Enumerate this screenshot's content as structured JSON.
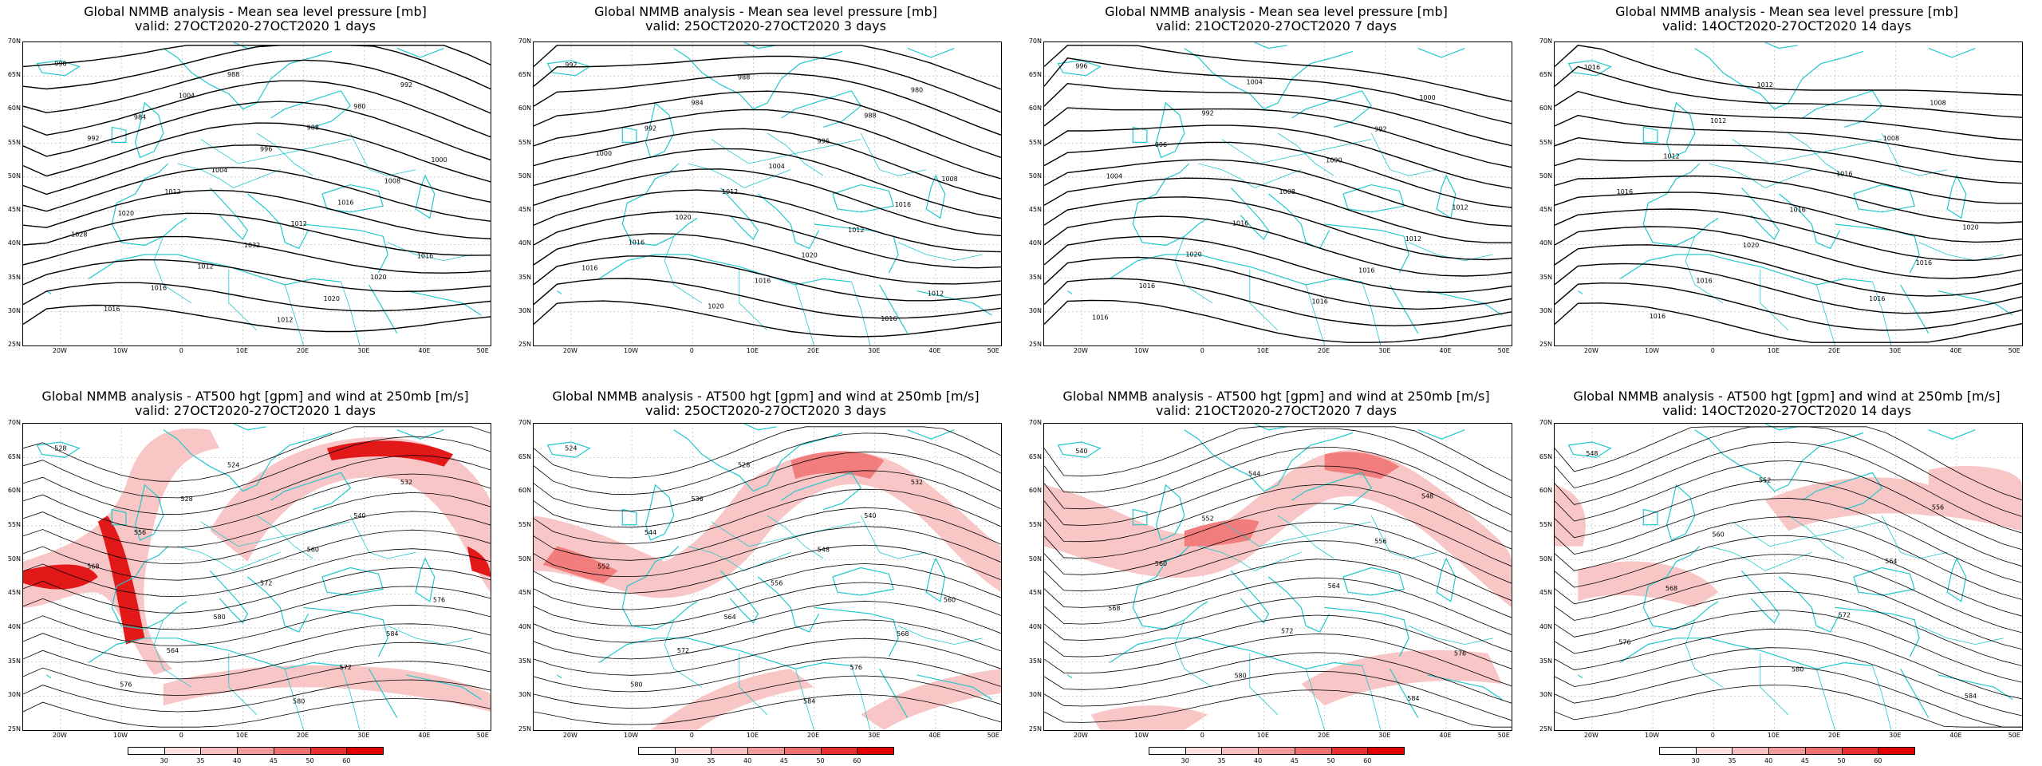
{
  "colors": {
    "coast": "#22c8cc",
    "jet_light": "#f8c0c0",
    "jet_mid": "#f07070",
    "jet_dark": "#e00000",
    "contour": "#000000",
    "grid": "#b8b8b8"
  },
  "lat_labels": [
    "70N",
    "65N",
    "60N",
    "55N",
    "50N",
    "45N",
    "40N",
    "35N",
    "30N",
    "25N"
  ],
  "lon_labels": [
    "20W",
    "10W",
    "0",
    "10E",
    "20E",
    "30E",
    "40E",
    "50E"
  ],
  "colorbar_ticks": [
    "30",
    "35",
    "40",
    "45",
    "50",
    "60"
  ],
  "mslp_panels": [
    {
      "id": "p1",
      "title": "Global NMMB analysis - Mean sea level pressure [mb]",
      "subtitle": "valid: 27OCT2020-27OCT2020   1 days",
      "contour_labels": [
        "996",
        "988",
        "992",
        "1004",
        "980",
        "984",
        "988",
        "992",
        "996",
        "1000",
        "1004",
        "1008",
        "1012",
        "1016",
        "1020",
        "1012",
        "1028",
        "1032",
        "1016",
        "1012",
        "1020",
        "1016",
        "1020",
        "1016",
        "1012"
      ]
    },
    {
      "id": "p2",
      "title": "Global NMMB analysis - Mean sea level pressure [mb]",
      "subtitle": "valid: 25OCT2020-27OCT2020   3 days",
      "contour_labels": [
        "992",
        "988",
        "980",
        "984",
        "988",
        "992",
        "996",
        "1000",
        "1004",
        "1008",
        "1012",
        "1016",
        "1020",
        "1012",
        "1016",
        "1020",
        "1016",
        "1016",
        "1012",
        "1020",
        "1016"
      ]
    },
    {
      "id": "p3",
      "title": "Global NMMB analysis - Mean sea level pressure [mb]",
      "subtitle": "valid: 21OCT2020-27OCT2020   7 days",
      "contour_labels": [
        "996",
        "1004",
        "1000",
        "992",
        "992",
        "996",
        "1000",
        "1004",
        "1008",
        "1012",
        "1016",
        "1012",
        "1020",
        "1016",
        "1016",
        "1016",
        "1016"
      ]
    },
    {
      "id": "p4",
      "title": "Global NMMB analysis - Mean sea level pressure [mb]",
      "subtitle": "valid: 14OCT2020-27OCT2020   14 days",
      "contour_labels": [
        "1016",
        "1012",
        "1008",
        "1012",
        "1008",
        "1012",
        "1016",
        "1016",
        "1016",
        "1020",
        "1020",
        "1016",
        "1016",
        "1016",
        "1016"
      ]
    }
  ],
  "z500_panels": [
    {
      "id": "p5",
      "title": "Global NMMB analysis - AT500 hgt [gpm] and wind at 250mb [m/s]",
      "subtitle": "valid: 27OCT2020-27OCT2020   1 days",
      "contour_labels": [
        "528",
        "524",
        "532",
        "528",
        "540",
        "556",
        "560",
        "568",
        "572",
        "576",
        "580",
        "584",
        "564",
        "572",
        "576",
        "580"
      ]
    },
    {
      "id": "p6",
      "title": "Global NMMB analysis - AT500 hgt [gpm] and wind at 250mb [m/s]",
      "subtitle": "valid: 25OCT2020-27OCT2020   3 days",
      "contour_labels": [
        "524",
        "528",
        "532",
        "536",
        "540",
        "544",
        "548",
        "552",
        "556",
        "560",
        "564",
        "568",
        "572",
        "576",
        "580",
        "584"
      ]
    },
    {
      "id": "p7",
      "title": "Global NMMB analysis - AT500 hgt [gpm] and wind at 250mb [m/s]",
      "subtitle": "valid: 21OCT2020-27OCT2020   7 days",
      "contour_labels": [
        "540",
        "544",
        "548",
        "552",
        "556",
        "560",
        "564",
        "568",
        "572",
        "576",
        "580",
        "584"
      ]
    },
    {
      "id": "p8",
      "title": "Global NMMB analysis - AT500 hgt [gpm] and wind at 250mb [m/s]",
      "subtitle": "valid: 14OCT2020-27OCT2020   14 days",
      "contour_labels": [
        "548",
        "552",
        "556",
        "560",
        "564",
        "568",
        "572",
        "576",
        "580",
        "584"
      ]
    }
  ]
}
